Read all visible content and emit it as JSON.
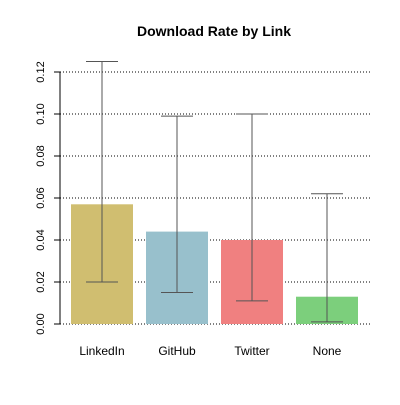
{
  "chart_data": {
    "type": "bar",
    "title": "Download Rate by Link",
    "xlabel": "",
    "ylabel": "",
    "categories": [
      "LinkedIn",
      "GitHub",
      "Twitter",
      "None"
    ],
    "values": [
      0.057,
      0.044,
      0.04,
      0.013
    ],
    "error_low": [
      0.02,
      0.015,
      0.011,
      0.001
    ],
    "error_high": [
      0.125,
      0.099,
      0.1,
      0.062
    ],
    "ylim": [
      0,
      0.125
    ],
    "yticks": [
      "0.00",
      "0.02",
      "0.04",
      "0.06",
      "0.08",
      "0.10",
      "0.12"
    ],
    "ytick_values": [
      0.0,
      0.02,
      0.04,
      0.06,
      0.08,
      0.1,
      0.12
    ],
    "grid": "horizontal dotted",
    "colors": [
      "#d0be70",
      "#98c0cc",
      "#f08080",
      "#7ccf7c"
    ],
    "error_bar_color": "#555555",
    "grid_color": "#000000"
  }
}
